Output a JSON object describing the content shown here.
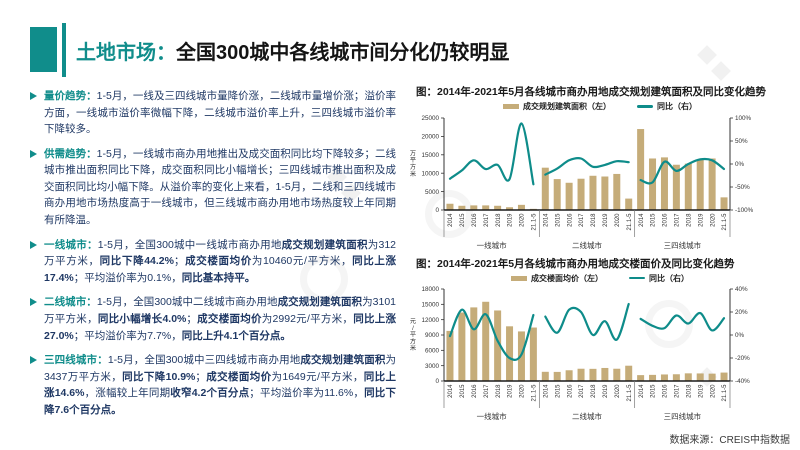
{
  "header": {
    "title_prefix": "土地市场：",
    "title_main": "全国300城中各线城市间分化仍较明显"
  },
  "bullets": [
    {
      "lead": "量价趋势：",
      "runs": [
        {
          "text": "1-5月，一线及三四线城市量降价涨，二线城市量增价涨；溢价率方面，一线城市溢价率微幅下降，二线城市溢价率上升，三四线城市溢价率下降较多。",
          "bold": false
        }
      ]
    },
    {
      "lead": "供需趋势：",
      "runs": [
        {
          "text": "1-5月，一线城市商办用地推出及成交面积同比均下降较多；二线城市推出面积同比下降，成交面积同比小幅增长；三四线城市推出面积及成交面积同比均小幅下降。从溢价率的变化上来看，1-5月，二线和三四线城市商办用地市场热度高于一线城市，但三线城市商办用地市场热度较上年同期有所降温。",
          "bold": false
        }
      ]
    },
    {
      "lead": "一线城市：",
      "runs": [
        {
          "text": "1-5月，全国300城中一线城市商办用地",
          "bold": false
        },
        {
          "text": "成交规划建筑面积",
          "bold": true
        },
        {
          "text": "为312万平方米，",
          "bold": false
        },
        {
          "text": "同比下降44.2%",
          "bold": true
        },
        {
          "text": "；",
          "bold": false
        },
        {
          "text": "成交楼面均价",
          "bold": true
        },
        {
          "text": "为10460元/平方米，",
          "bold": false
        },
        {
          "text": "同比上涨17.4%",
          "bold": true
        },
        {
          "text": "；平均溢价率为0.1%，",
          "bold": false
        },
        {
          "text": "同比基本持平。",
          "bold": true
        }
      ]
    },
    {
      "lead": "二线城市：",
      "runs": [
        {
          "text": "1-5月，全国300城中二线城市商办用地",
          "bold": false
        },
        {
          "text": "成交规划建筑面积",
          "bold": true
        },
        {
          "text": "为3101万平方米，",
          "bold": false
        },
        {
          "text": "同比小幅增长4.0%",
          "bold": true
        },
        {
          "text": "；",
          "bold": false
        },
        {
          "text": "成交楼面均价",
          "bold": true
        },
        {
          "text": "为2992元/平方米，",
          "bold": false
        },
        {
          "text": "同比上涨27.0%",
          "bold": true
        },
        {
          "text": "；平均溢价率为7.7%，",
          "bold": false
        },
        {
          "text": "同比上升4.1个百分点。",
          "bold": true
        }
      ]
    },
    {
      "lead": "三四线城市：",
      "runs": [
        {
          "text": "1-5月，全国300城中三四线城市商办用地",
          "bold": false
        },
        {
          "text": "成交规划建筑面积",
          "bold": true
        },
        {
          "text": "为3437万平方米，",
          "bold": false
        },
        {
          "text": "同比下降10.9%",
          "bold": true
        },
        {
          "text": "；",
          "bold": false
        },
        {
          "text": "成交楼面均价",
          "bold": true
        },
        {
          "text": "为1649元/平方米，",
          "bold": false
        },
        {
          "text": "同比上涨14.6%",
          "bold": true
        },
        {
          "text": "，涨幅较上年同期",
          "bold": false
        },
        {
          "text": "收窄4.2个百分点",
          "bold": true
        },
        {
          "text": "；平均溢价率为11.6%，",
          "bold": false
        },
        {
          "text": "同比下降7.6个百分点。",
          "bold": true
        }
      ]
    }
  ],
  "chart_data": [
    {
      "type": "bar+line",
      "title": "图：2014年-2021年5月各线城市商办用地成交规划建筑面积及同比变化趋势",
      "legend": [
        {
          "label": "成交规划建筑面积（左）",
          "type": "bar",
          "color": "#c5ac79"
        },
        {
          "label": "同比（右）",
          "type": "line",
          "color": "#0e8c8a"
        }
      ],
      "left_axis": {
        "label": "万平方米",
        "min": 0,
        "max": 25000,
        "step": 5000
      },
      "right_axis": {
        "min": -100,
        "max": 100,
        "step": 50,
        "suffix": "%"
      },
      "x": [
        "2014",
        "2015",
        "2016",
        "2017",
        "2018",
        "2019",
        "2020",
        "21.1-5"
      ],
      "panels": [
        {
          "label": "一线城市",
          "bars": [
            1700,
            1150,
            1250,
            1250,
            1150,
            750,
            1400,
            312
          ],
          "line": [
            -32,
            -14,
            8,
            -11,
            -2,
            -33,
            88,
            -44.2
          ]
        },
        {
          "label": "二线城市",
          "bars": [
            11500,
            8400,
            7400,
            8500,
            9300,
            9100,
            9800,
            3101
          ],
          "line": [
            -23,
            -10,
            8,
            12,
            -6,
            -2,
            6,
            4
          ]
        },
        {
          "label": "三四线城市",
          "bars": [
            22000,
            14000,
            14300,
            12300,
            12600,
            13600,
            14000,
            3437
          ],
          "line": [
            -35,
            -40,
            5,
            -15,
            0,
            10,
            8,
            -10.9
          ]
        }
      ]
    },
    {
      "type": "bar+line",
      "title": "图：2014年-2021年5月各线城市商办用地成交楼面价及同比变化趋势",
      "legend": [
        {
          "label": "成交楼面均价（左）",
          "type": "bar",
          "color": "#c5ac79"
        },
        {
          "label": "同比（右）",
          "type": "line",
          "color": "#0e8c8a"
        }
      ],
      "left_axis": {
        "label": "元/平方米",
        "min": 0,
        "max": 18000,
        "step": 3000
      },
      "right_axis": {
        "min": -40,
        "max": 40,
        "step": 20,
        "suffix": "%"
      },
      "x": [
        "2014",
        "2015",
        "2016",
        "2017",
        "2018",
        "2019",
        "2020",
        "21.1-5"
      ],
      "panels": [
        {
          "label": "一线城市",
          "bars": [
            9800,
            13400,
            14400,
            15500,
            13800,
            10700,
            9700,
            10460
          ],
          "line": [
            -1,
            22,
            5,
            18,
            -5,
            -20,
            -17,
            17.4
          ]
        },
        {
          "label": "二线城市",
          "bars": [
            1800,
            1780,
            2100,
            2400,
            2380,
            2550,
            2400,
            2992
          ],
          "line": [
            16,
            2,
            22,
            20,
            0,
            12,
            -4,
            27
          ]
        },
        {
          "label": "三四线城市",
          "bars": [
            1150,
            1200,
            1280,
            1320,
            1500,
            1480,
            1440,
            1649
          ],
          "line": [
            14,
            8,
            6,
            17,
            10,
            19,
            4,
            14.6
          ]
        }
      ]
    }
  ],
  "source": "数据来源：CREIS中指数据",
  "colors": {
    "accent": "#108d8b",
    "bar": "#c5ac79",
    "line": "#0e8c8a",
    "body_text": "#1f3864",
    "title_text": "#141414"
  }
}
